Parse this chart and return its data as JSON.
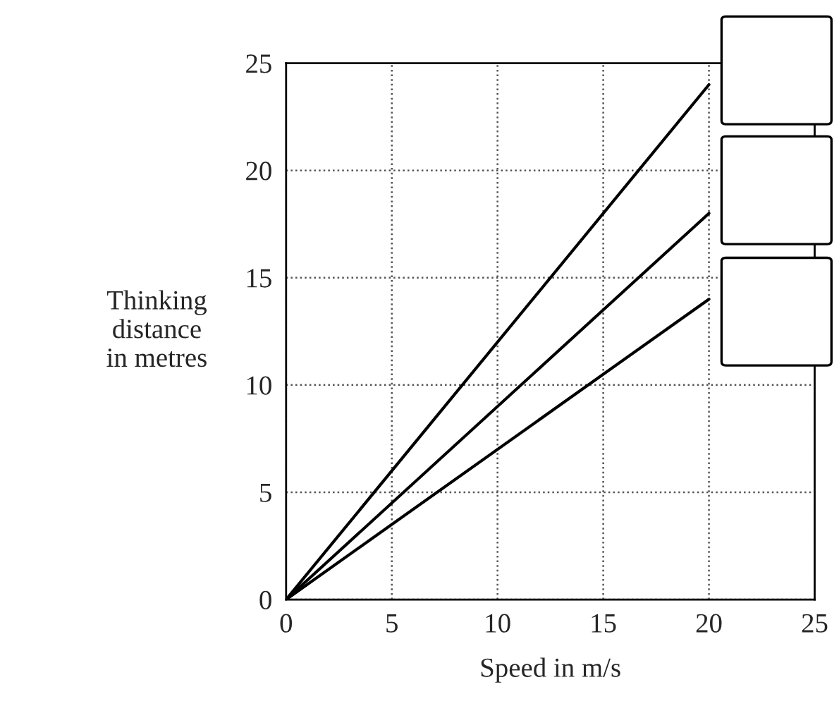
{
  "chart_data": {
    "type": "line",
    "xlabel": "Speed in m/s",
    "ylabel": "Thinking\ndistance\nin metres",
    "x": [
      0,
      20
    ],
    "series": [
      {
        "color": "#000000",
        "values": [
          0,
          24
        ]
      },
      {
        "color": "#000000",
        "values": [
          0,
          18
        ]
      },
      {
        "color": "#000000",
        "values": [
          0,
          14
        ]
      }
    ],
    "xlim": [
      0,
      25
    ],
    "ylim": [
      0,
      25
    ],
    "xticks": [
      0,
      5,
      10,
      15,
      20,
      25
    ],
    "yticks": [
      0,
      5,
      10,
      15,
      20,
      25
    ],
    "grid": true,
    "line_style": "solid"
  }
}
